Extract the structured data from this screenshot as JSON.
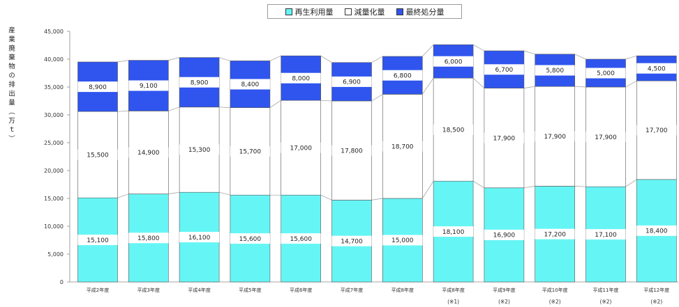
{
  "chart_data": {
    "type": "bar",
    "stacked": true,
    "title": "",
    "xlabel": "",
    "ylabel": "産業廃棄物の排出量（万ｔ）",
    "categories": [
      "平成2年度",
      "平成3年度",
      "平成4年度",
      "平成5年度",
      "平成6年度",
      "平成7年度",
      "平成8年度",
      "平成8年度",
      "平成9年度",
      "平成10年度",
      "平成11年度",
      "平成12年度"
    ],
    "category_notes": [
      "",
      "",
      "",
      "",
      "",
      "",
      "",
      "(※1)",
      "(※2)",
      "(※2)",
      "(※2)",
      "(※2)"
    ],
    "series": [
      {
        "name": "再生利用量",
        "color": "#66F5F5",
        "values": [
          15100,
          15800,
          16100,
          15600,
          15600,
          14700,
          15000,
          18100,
          16900,
          17200,
          17100,
          18400
        ]
      },
      {
        "name": "減量化量",
        "color": "#FFFFFF",
        "values": [
          15500,
          14900,
          15300,
          15700,
          17000,
          17800,
          18700,
          18500,
          17900,
          17900,
          17900,
          17700
        ]
      },
      {
        "name": "最終処分量",
        "color": "#2F55EE",
        "values": [
          8900,
          9100,
          8900,
          8400,
          8000,
          6900,
          6800,
          6000,
          6700,
          5800,
          5000,
          4500
        ]
      }
    ],
    "ylim": [
      0,
      45000
    ],
    "yticks": [
      0,
      5000,
      10000,
      15000,
      20000,
      25000,
      30000,
      35000,
      40000,
      45000
    ],
    "data_labels": true,
    "series_lines": true,
    "grid": false,
    "legend_position": "top-center"
  }
}
